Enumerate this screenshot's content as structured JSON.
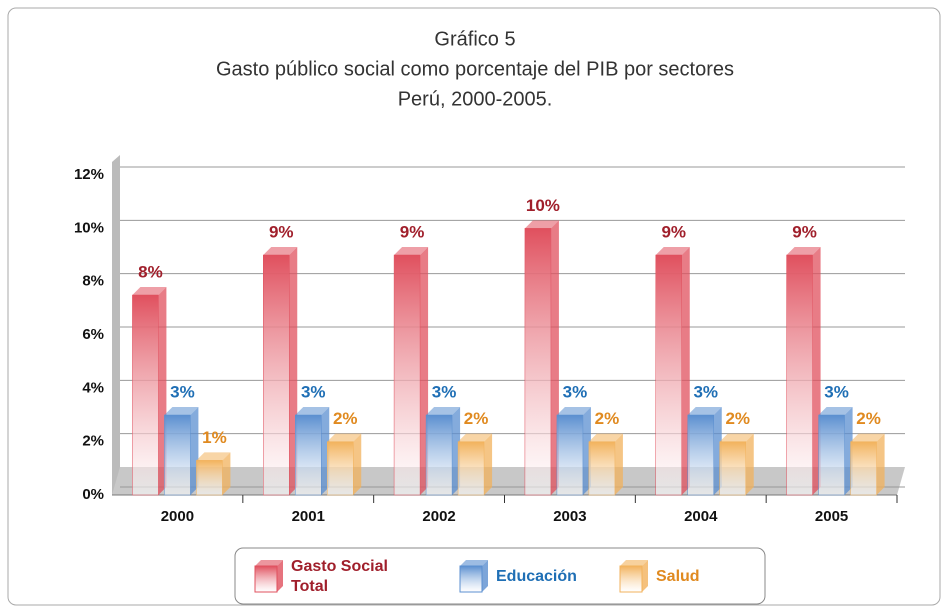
{
  "chart_data": {
    "type": "bar3d",
    "title": [
      "Gráfico 5",
      "Gasto público social como porcentaje del PIB por sectores",
      "Perú, 2000-2005."
    ],
    "categories": [
      "2000",
      "2001",
      "2002",
      "2003",
      "2004",
      "2005"
    ],
    "series": [
      {
        "name": "Gasto Social Total",
        "color": "#e0505e",
        "label_color": "#a01f2b",
        "values": [
          7.5,
          9,
          9,
          10,
          9,
          9
        ],
        "value_labels": [
          "8%",
          "9%",
          "9%",
          "10%",
          "9%",
          "9%"
        ]
      },
      {
        "name": "Educación",
        "color": "#5b8fd0",
        "label_color": "#1f6fb5",
        "values": [
          3,
          3,
          3,
          3,
          3,
          3
        ],
        "value_labels": [
          "3%",
          "3%",
          "3%",
          "3%",
          "3%",
          "3%"
        ]
      },
      {
        "name": "Salud",
        "color": "#f2b25c",
        "label_color": "#e08a20",
        "values": [
          1.3,
          2,
          2,
          2,
          2,
          2
        ],
        "value_labels": [
          "1%",
          "2%",
          "2%",
          "2%",
          "2%",
          "2%"
        ]
      }
    ],
    "ylim": [
      0,
      12
    ],
    "yticks": [
      {
        "value": 0,
        "label": "0%"
      },
      {
        "value": 2,
        "label": "2%"
      },
      {
        "value": 4,
        "label": "4%"
      },
      {
        "value": 6,
        "label": "6%"
      },
      {
        "value": 8,
        "label": "8%"
      },
      {
        "value": 10,
        "label": "10%"
      },
      {
        "value": 12,
        "label": "12%"
      }
    ],
    "grid": true
  }
}
